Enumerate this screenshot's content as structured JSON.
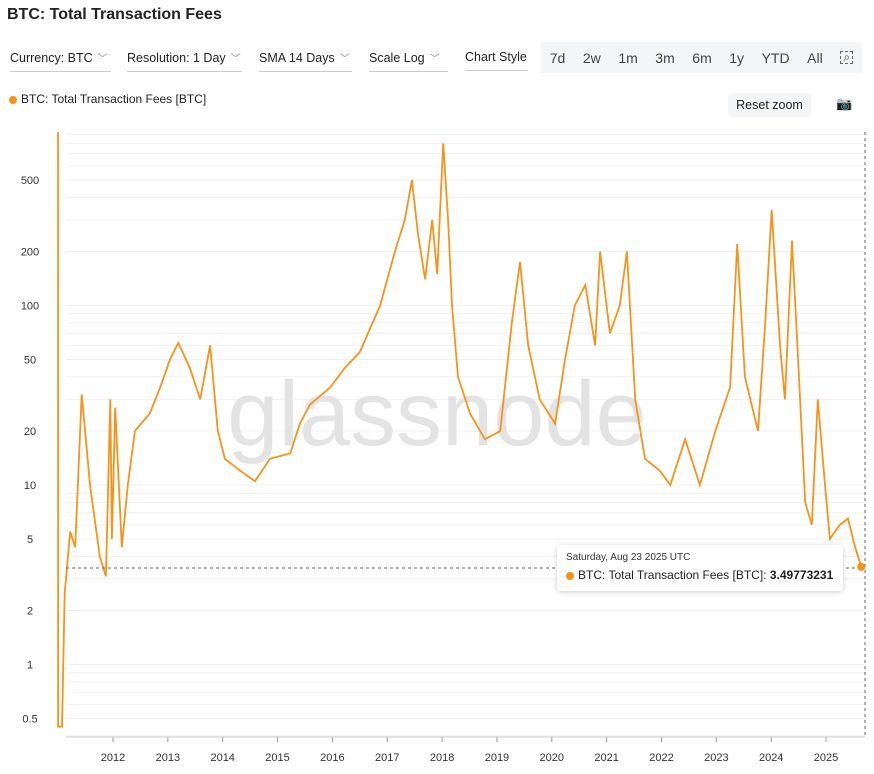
{
  "title": "BTC: Total Transaction Fees",
  "controls": [
    {
      "label": "Currency: BTC"
    },
    {
      "label": "Resolution: 1 Day"
    },
    {
      "label": "SMA 14 Days"
    },
    {
      "label": "Scale Log"
    },
    {
      "label": "Chart Style"
    }
  ],
  "ranges": [
    "7d",
    "2w",
    "1m",
    "3m",
    "6m",
    "1y",
    "YTD",
    "All"
  ],
  "legend": "BTC: Total Transaction Fees [BTC]",
  "reset_zoom": "Reset zoom",
  "watermark": "glassnode",
  "tooltip": {
    "date": "Saturday, Aug 23 2025 UTC",
    "label": "BTC: Total Transaction Fees [BTC]:",
    "value": "3.49773231"
  },
  "colors": {
    "series": "#f7931a"
  },
  "chart_data": {
    "type": "line",
    "title": "BTC: Total Transaction Fees",
    "scale": "log",
    "ylim": [
      0.4,
      1000
    ],
    "xlim": [
      2010.9,
      2025.72
    ],
    "yticks": [
      0.5,
      1,
      2,
      5,
      10,
      20,
      50,
      100,
      200,
      500
    ],
    "xticks": [
      2012,
      2013,
      2014,
      2015,
      2016,
      2017,
      2018,
      2019,
      2020,
      2021,
      2022,
      2023,
      2024,
      2025
    ],
    "legend": "top-left",
    "series": [
      {
        "name": "BTC: Total Transaction Fees [BTC]",
        "points": [
          [
            2010.98,
            1000
          ],
          [
            2011.0,
            0.45
          ],
          [
            2011.07,
            0.45
          ],
          [
            2011.12,
            2.5
          ],
          [
            2011.22,
            5.5
          ],
          [
            2011.31,
            4.5
          ],
          [
            2011.43,
            32
          ],
          [
            2011.58,
            10
          ],
          [
            2011.76,
            4
          ],
          [
            2011.87,
            3.1
          ],
          [
            2011.95,
            30
          ],
          [
            2011.98,
            5
          ],
          [
            2012.04,
            27
          ],
          [
            2012.16,
            4.5
          ],
          [
            2012.27,
            10
          ],
          [
            2012.4,
            20
          ],
          [
            2012.67,
            25
          ],
          [
            2012.86,
            35
          ],
          [
            2013.04,
            50
          ],
          [
            2013.19,
            62
          ],
          [
            2013.4,
            45
          ],
          [
            2013.59,
            30
          ],
          [
            2013.77,
            60
          ],
          [
            2013.91,
            20
          ],
          [
            2014.04,
            14
          ],
          [
            2014.32,
            12
          ],
          [
            2014.59,
            10.5
          ],
          [
            2014.86,
            14
          ],
          [
            2015.23,
            15
          ],
          [
            2015.41,
            22
          ],
          [
            2015.59,
            28
          ],
          [
            2015.96,
            35
          ],
          [
            2016.23,
            45
          ],
          [
            2016.5,
            55
          ],
          [
            2016.87,
            100
          ],
          [
            2017.14,
            200
          ],
          [
            2017.32,
            300
          ],
          [
            2017.45,
            500
          ],
          [
            2017.56,
            250
          ],
          [
            2017.69,
            140
          ],
          [
            2017.82,
            300
          ],
          [
            2017.91,
            150
          ],
          [
            2018.02,
            800
          ],
          [
            2018.11,
            300
          ],
          [
            2018.18,
            100
          ],
          [
            2018.29,
            40
          ],
          [
            2018.51,
            25
          ],
          [
            2018.78,
            18
          ],
          [
            2019.06,
            20
          ],
          [
            2019.27,
            80
          ],
          [
            2019.42,
            175
          ],
          [
            2019.57,
            60
          ],
          [
            2019.78,
            30
          ],
          [
            2020.06,
            22
          ],
          [
            2020.24,
            50
          ],
          [
            2020.42,
            100
          ],
          [
            2020.61,
            130
          ],
          [
            2020.79,
            60
          ],
          [
            2020.88,
            200
          ],
          [
            2021.06,
            70
          ],
          [
            2021.24,
            100
          ],
          [
            2021.37,
            200
          ],
          [
            2021.52,
            30
          ],
          [
            2021.7,
            14
          ],
          [
            2021.97,
            12
          ],
          [
            2022.16,
            10
          ],
          [
            2022.43,
            18
          ],
          [
            2022.7,
            10
          ],
          [
            2022.98,
            20
          ],
          [
            2023.25,
            35
          ],
          [
            2023.38,
            220
          ],
          [
            2023.52,
            40
          ],
          [
            2023.76,
            20
          ],
          [
            2023.89,
            80
          ],
          [
            2024.01,
            340
          ],
          [
            2024.16,
            60
          ],
          [
            2024.25,
            30
          ],
          [
            2024.38,
            230
          ],
          [
            2024.49,
            50
          ],
          [
            2024.62,
            8
          ],
          [
            2024.74,
            6
          ],
          [
            2024.85,
            30
          ],
          [
            2024.98,
            10
          ],
          [
            2025.07,
            5
          ],
          [
            2025.25,
            6
          ],
          [
            2025.4,
            6.5
          ],
          [
            2025.53,
            4.5
          ],
          [
            2025.64,
            3.5
          ]
        ]
      }
    ],
    "highlight": {
      "x": 2025.64,
      "y": 3.49773231
    }
  }
}
